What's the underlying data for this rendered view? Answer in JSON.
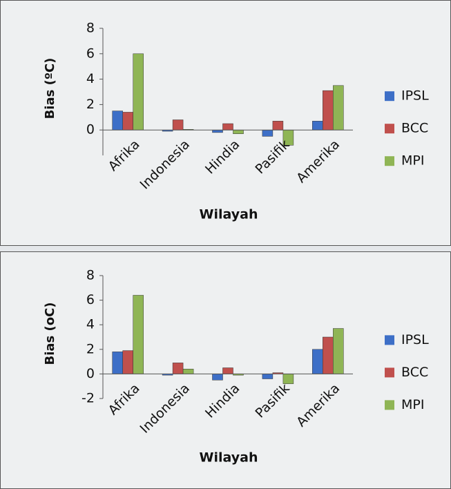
{
  "chart_data": [
    {
      "type": "bar",
      "ylabel": "Bias (ºC)",
      "xlabel": "Wilayah",
      "categories": [
        "Afrika",
        "Indonesia",
        "Hindia",
        "Pasifik",
        "Amerika"
      ],
      "series": [
        {
          "name": "IPSL",
          "color": "#3d6fc7",
          "values": [
            1.5,
            -0.1,
            -0.2,
            -0.5,
            0.7
          ]
        },
        {
          "name": "BCC",
          "color": "#c0504d",
          "values": [
            1.4,
            0.8,
            0.5,
            0.7,
            3.1
          ]
        },
        {
          "name": "MPI",
          "color": "#8fb555",
          "values": [
            6.0,
            0.05,
            -0.3,
            -1.2,
            3.5
          ]
        }
      ],
      "ylim": [
        -2,
        8
      ],
      "yticks": [
        0,
        2,
        4,
        6,
        8
      ],
      "grid": false
    },
    {
      "type": "bar",
      "ylabel": "Bias (oC)",
      "xlabel": "Wilayah",
      "categories": [
        "Afrika",
        "Indonesia",
        "Hindia",
        "Pasifik",
        "Amerika"
      ],
      "series": [
        {
          "name": "IPSL",
          "color": "#3d6fc7",
          "values": [
            1.8,
            -0.1,
            -0.5,
            -0.4,
            2.0
          ]
        },
        {
          "name": "BCC",
          "color": "#c0504d",
          "values": [
            1.9,
            0.9,
            0.5,
            0.1,
            3.0
          ]
        },
        {
          "name": "MPI",
          "color": "#8fb555",
          "values": [
            6.4,
            0.4,
            -0.1,
            -0.8,
            3.7
          ]
        }
      ],
      "ylim": [
        -2,
        8
      ],
      "yticks": [
        -2,
        0,
        2,
        4,
        6,
        8
      ],
      "grid": false
    }
  ]
}
